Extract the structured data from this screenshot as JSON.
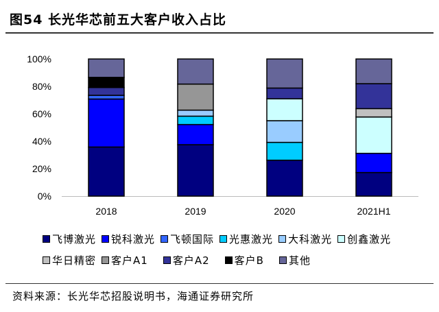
{
  "title": "图54 长光华芯前五大客户收入占比",
  "source": "资料来源：长光华芯招股说明书，海通证券研究所",
  "chart_data": {
    "type": "bar",
    "stacked": true,
    "categories": [
      "2018",
      "2019",
      "2020",
      "2021H1"
    ],
    "ylim": [
      0,
      100
    ],
    "yticks": [
      "0%",
      "20%",
      "40%",
      "60%",
      "80%",
      "100%"
    ],
    "legend_position": "bottom",
    "series": [
      {
        "name": "飞博激光",
        "color": "#000080",
        "values": [
          35.8,
          37.5,
          26.2,
          17.2
        ]
      },
      {
        "name": "锐科激光",
        "color": "#0000FF",
        "values": [
          35.0,
          14.7,
          0,
          14.0
        ]
      },
      {
        "name": "飞顿国际",
        "color": "#3366FF",
        "values": [
          2.7,
          0,
          0,
          0
        ]
      },
      {
        "name": "光惠激光",
        "color": "#00CCFF",
        "values": [
          0,
          6.1,
          13.0,
          0
        ]
      },
      {
        "name": "大科激光",
        "color": "#99CCFF",
        "values": [
          0,
          4.4,
          15.8,
          0
        ]
      },
      {
        "name": "创鑫激光",
        "color": "#CCFFFF",
        "values": [
          0,
          0,
          16.0,
          26.5
        ]
      },
      {
        "name": "华日精密",
        "color": "#C0C0C0",
        "values": [
          0,
          0,
          0,
          6.1
        ]
      },
      {
        "name": "客户A1",
        "color": "#969696",
        "values": [
          0,
          19.0,
          0,
          0
        ]
      },
      {
        "name": "客户A2",
        "color": "#333399",
        "values": [
          5.7,
          0,
          7.8,
          18.2
        ]
      },
      {
        "name": "客户B",
        "color": "#000000",
        "values": [
          7.4,
          0,
          0,
          0
        ]
      },
      {
        "name": "其他",
        "color": "#666699",
        "values": [
          13.4,
          18.3,
          21.2,
          18.0
        ]
      }
    ]
  }
}
